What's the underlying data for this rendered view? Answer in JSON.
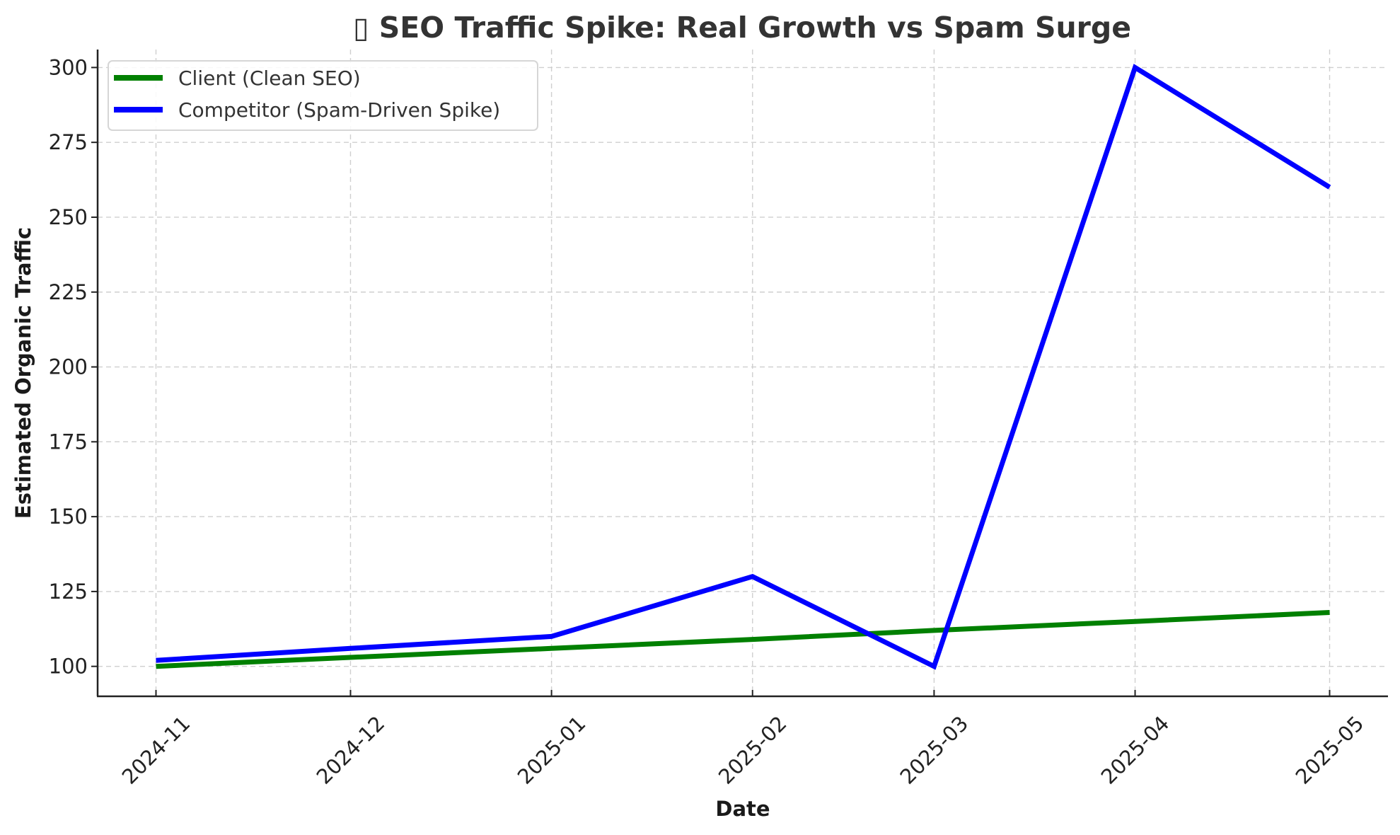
{
  "chart_data": {
    "type": "line",
    "title": "▯ SEO Traffic Spike: Real Growth vs Spam Surge",
    "title_icon": "missing-glyph-box",
    "xlabel": "Date",
    "ylabel": "Estimated Organic Traffic",
    "x": [
      "2024-11",
      "2024-12",
      "2025-01",
      "2025-02",
      "2025-03",
      "2025-04",
      "2025-05"
    ],
    "x_tick_labels": [
      "2024-11",
      "2024-12",
      "2025-01",
      "2025-02",
      "2025-03",
      "2025-04",
      "2025-05"
    ],
    "x_tick_rotation_deg": 45,
    "y_ticks": [
      100,
      125,
      150,
      175,
      200,
      225,
      250,
      275,
      300
    ],
    "y_tick_labels": [
      "100",
      "125",
      "150",
      "175",
      "200",
      "225",
      "250",
      "275",
      "300"
    ],
    "ylim": [
      90,
      306
    ],
    "xlim_days_padding": 9,
    "grid": true,
    "legend_position": "top-left",
    "series": [
      {
        "name": "Client (Clean SEO)",
        "color": "#008000",
        "values": [
          100,
          103,
          106,
          109,
          112,
          115,
          118
        ]
      },
      {
        "name": "Competitor (Spam-Driven Spike)",
        "color": "#0000ff",
        "values": [
          102,
          106,
          110,
          130,
          100,
          300,
          260
        ]
      }
    ]
  }
}
